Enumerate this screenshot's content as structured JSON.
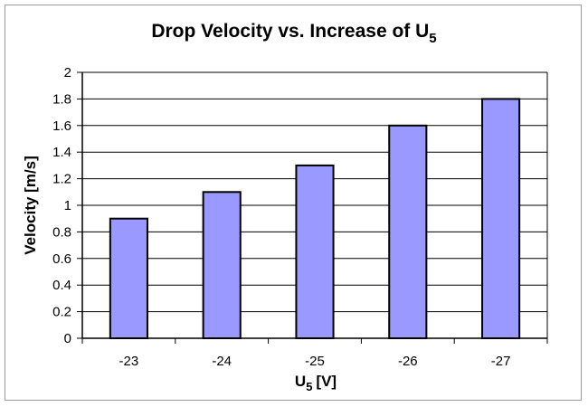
{
  "chart_data": {
    "type": "bar",
    "title": "Drop Velocity vs. Increase of U",
    "title_subscript": "5",
    "xlabel": "U",
    "xlabel_subscript": "5",
    "xlabel_unit": "[V]",
    "ylabel": "Velocity [m/s]",
    "categories": [
      "-23",
      "-24",
      "-25",
      "-26",
      "-27"
    ],
    "values": [
      0.9,
      1.1,
      1.3,
      1.6,
      1.8
    ],
    "ylim": [
      0,
      2
    ],
    "yticks": [
      "0",
      "0.2",
      "0.4",
      "0.6",
      "0.8",
      "1",
      "1.2",
      "1.4",
      "1.6",
      "1.8",
      "2"
    ],
    "grid": true,
    "legend": "none",
    "bar_color": "#9999ff"
  }
}
